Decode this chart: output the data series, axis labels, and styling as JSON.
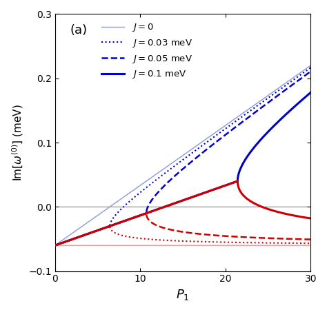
{
  "title": "(a)",
  "xlabel": "$P_1$",
  "ylabel": "Im[$\\omega^{(0)}$] (meV)",
  "xlim": [
    0,
    30
  ],
  "ylim": [
    -0.1,
    0.3
  ],
  "yticks": [
    -0.1,
    0.0,
    0.1,
    0.2,
    0.3
  ],
  "xticks": [
    0,
    10,
    20,
    30
  ],
  "gamma": -0.06,
  "legend_entries": [
    {
      "label": "$J = 0$",
      "color": "#6688cc",
      "lw": 1.0,
      "ls": "solid"
    },
    {
      "label": "$J = 0.03$ meV",
      "color": "#0000cc",
      "lw": 1.5,
      "ls": "dotted"
    },
    {
      "label": "$J = 0.05$ meV",
      "color": "#0000cc",
      "lw": 1.8,
      "ls": "dashed"
    },
    {
      "label": "$J = 0.1$ meV",
      "color": "#0000cc",
      "lw": 2.2,
      "ls": "solid"
    }
  ],
  "background_color": "#ffffff",
  "light_blue": "#8899dd",
  "dark_blue": "#0000bb",
  "light_red": "#ff9999",
  "dark_red": "#cc0000"
}
